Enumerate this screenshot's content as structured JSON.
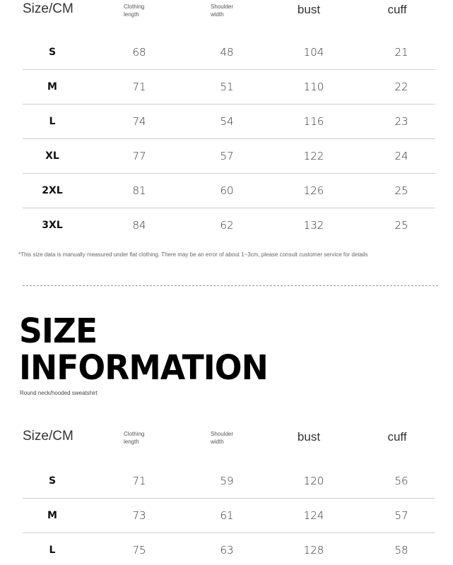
{
  "headers": {
    "size": "Size/CM",
    "clothing_length": [
      "Clothing",
      "length"
    ],
    "shoulder_width": [
      "Shoulder",
      "width"
    ],
    "bust": "bust",
    "cuff": "cuff"
  },
  "table1": [
    {
      "size": "S",
      "length": "68",
      "shoulder": "48",
      "bust": "104",
      "cuff": "21"
    },
    {
      "size": "M",
      "length": "71",
      "shoulder": "51",
      "bust": "110",
      "cuff": "22"
    },
    {
      "size": "L",
      "length": "74",
      "shoulder": "54",
      "bust": "116",
      "cuff": "23"
    },
    {
      "size": "XL",
      "length": "77",
      "shoulder": "57",
      "bust": "122",
      "cuff": "24"
    },
    {
      "size": "2XL",
      "length": "81",
      "shoulder": "60",
      "bust": "126",
      "cuff": "25"
    },
    {
      "size": "3XL",
      "length": "84",
      "shoulder": "62",
      "bust": "132",
      "cuff": "25"
    }
  ],
  "note": "*This size data is manually measured under flat clothing. There may be an error of about 1~3cm, please consult customer service for details",
  "title": [
    "SIZE",
    "INFORMATION"
  ],
  "subtitle": "Round neck/hooded sweatshirt",
  "table2": [
    {
      "size": "S",
      "length": "71",
      "shoulder": "59",
      "bust": "120",
      "cuff": "56"
    },
    {
      "size": "M",
      "length": "73",
      "shoulder": "61",
      "bust": "124",
      "cuff": "57"
    },
    {
      "size": "L",
      "length": "75",
      "shoulder": "63",
      "bust": "128",
      "cuff": "58"
    }
  ]
}
